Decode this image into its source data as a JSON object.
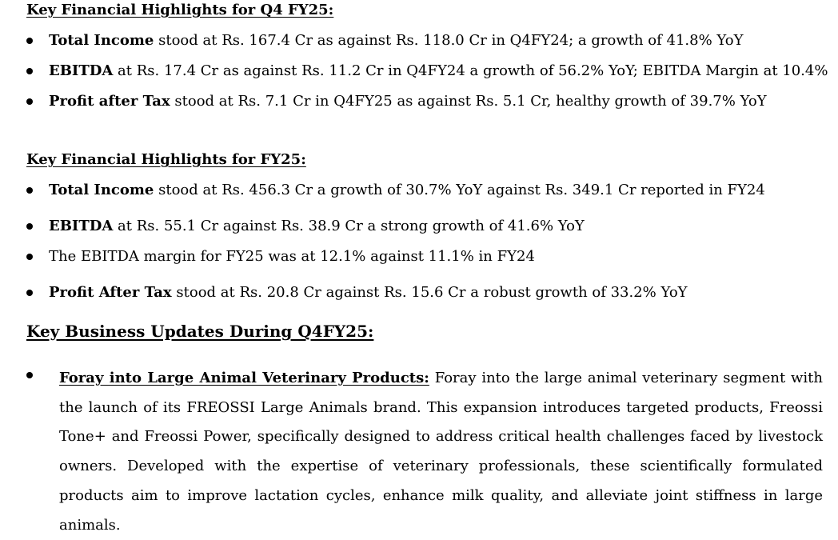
{
  "q4_section": {
    "heading": "Key Financial Highlights for Q4 FY25:",
    "bullets": [
      {
        "lead": "Total Income",
        "text": " stood at Rs. 167.4 Cr as against Rs. 118.0 Cr in Q4FY24; a growth of 41.8% YoY"
      },
      {
        "lead": "EBITDA",
        "text": " at Rs. 17.4 Cr as against Rs. 11.2 Cr in Q4FY24 a growth of 56.2% YoY; EBITDA Margin at 10.4%"
      },
      {
        "lead": "Profit after Tax",
        "text": " stood at Rs. 7.1 Cr in Q4FY25 as against Rs. 5.1 Cr, healthy growth of 39.7% YoY"
      }
    ]
  },
  "fy_section": {
    "heading": "Key Financial Highlights for FY25:",
    "bullets": [
      {
        "lead": "Total Income",
        "text": " stood at Rs. 456.3 Cr a growth of 30.7% YoY against Rs. 349.1 Cr reported in FY24"
      },
      {
        "lead": "EBITDA",
        "text": " at Rs. 55.1 Cr against Rs. 38.9 Cr a strong growth of 41.6% YoY"
      },
      {
        "lead": "",
        "text": "The EBITDA margin for FY25 was at 12.1% against 11.1% in FY24"
      },
      {
        "lead": "Profit After Tax",
        "text": " stood at Rs. 20.8 Cr against Rs. 15.6 Cr a robust growth of 33.2% YoY"
      }
    ]
  },
  "business_section": {
    "heading": "Key Business Updates During Q4FY25:",
    "bullets": [
      {
        "lead": "Foray into Large Animal Veterinary Products:",
        "text": " Foray into the large animal veterinary segment with the launch of its FREOSSI Large Animals brand. This expansion introduces targeted products, Freossi Tone+ and Freossi Power, specifically designed to address critical health challenges faced by livestock owners. Developed with the expertise of veterinary professionals, these scientifically formulated products aim to improve lactation cycles, enhance milk quality, and alleviate joint stiffness in large animals."
      }
    ]
  }
}
